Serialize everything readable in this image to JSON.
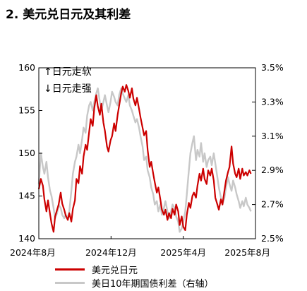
{
  "title": "2. 美元兑日元及其利差",
  "colors": {
    "usdjpy": "#cc0000",
    "spread": "#c8c8c8"
  },
  "annotations": {
    "up": "↑日元走软",
    "down": "↓日元走强"
  },
  "chart_data": {
    "type": "line",
    "title": "2. 美元兑日元及其利差",
    "x_range": [
      "2024-07-01",
      "2025-08-31"
    ],
    "x_ticks": [
      "2024年8月",
      "2024年12月",
      "2025年4月",
      "2025年8月"
    ],
    "y_left": {
      "range": [
        140,
        160
      ],
      "ticks": [
        "160",
        "155",
        "150",
        "145",
        "140"
      ]
    },
    "y_right": {
      "range": [
        2.5,
        3.5
      ],
      "ticks": [
        "3.5%",
        "3.3%",
        "3.1%",
        "2.9%",
        "2.7%",
        "2.5%"
      ]
    },
    "grid": false,
    "legend": "bottom",
    "series": [
      {
        "name": "美元兑日元",
        "axis": "left",
        "color": "#cc0000",
        "points": [
          [
            "2024-07-01",
            145.8
          ],
          [
            "2024-07-05",
            147.0
          ],
          [
            "2024-07-09",
            146.2
          ],
          [
            "2024-07-12",
            144.6
          ],
          [
            "2024-07-16",
            143.2
          ],
          [
            "2024-07-19",
            144.5
          ],
          [
            "2024-07-23",
            142.9
          ],
          [
            "2024-07-26",
            141.8
          ],
          [
            "2024-07-30",
            140.8
          ],
          [
            "2024-08-02",
            142.6
          ],
          [
            "2024-08-06",
            143.4
          ],
          [
            "2024-08-09",
            144.0
          ],
          [
            "2024-08-13",
            145.4
          ],
          [
            "2024-08-16",
            144.1
          ],
          [
            "2024-08-20",
            143.4
          ],
          [
            "2024-08-23",
            142.7
          ],
          [
            "2024-08-27",
            142.2
          ],
          [
            "2024-08-30",
            143.0
          ],
          [
            "2024-09-03",
            142.0
          ],
          [
            "2024-09-06",
            143.5
          ],
          [
            "2024-09-10",
            144.5
          ],
          [
            "2024-09-13",
            147.0
          ],
          [
            "2024-09-17",
            146.5
          ],
          [
            "2024-09-20",
            148.5
          ],
          [
            "2024-09-24",
            147.6
          ],
          [
            "2024-09-27",
            149.6
          ],
          [
            "2024-10-01",
            151.0
          ],
          [
            "2024-10-04",
            150.4
          ],
          [
            "2024-10-08",
            152.5
          ],
          [
            "2024-10-11",
            154.0
          ],
          [
            "2024-10-15",
            153.2
          ],
          [
            "2024-10-18",
            155.3
          ],
          [
            "2024-10-22",
            156.8
          ],
          [
            "2024-10-25",
            155.5
          ],
          [
            "2024-10-29",
            154.5
          ],
          [
            "2024-11-01",
            155.8
          ],
          [
            "2024-11-05",
            153.6
          ],
          [
            "2024-11-08",
            152.6
          ],
          [
            "2024-11-12",
            150.8
          ],
          [
            "2024-11-15",
            150.2
          ],
          [
            "2024-11-19",
            151.5
          ],
          [
            "2024-11-22",
            152.0
          ],
          [
            "2024-11-26",
            153.5
          ],
          [
            "2024-11-29",
            152.6
          ],
          [
            "2024-12-03",
            154.5
          ],
          [
            "2024-12-06",
            155.6
          ],
          [
            "2024-12-10",
            157.0
          ],
          [
            "2024-12-13",
            157.8
          ],
          [
            "2024-12-17",
            157.2
          ],
          [
            "2024-12-20",
            158.0
          ],
          [
            "2024-12-24",
            157.3
          ],
          [
            "2024-12-27",
            156.5
          ],
          [
            "2024-12-31",
            157.6
          ],
          [
            "2025-01-03",
            156.4
          ],
          [
            "2025-01-07",
            155.6
          ],
          [
            "2025-01-10",
            156.5
          ],
          [
            "2025-01-14",
            155.2
          ],
          [
            "2025-01-17",
            154.2
          ],
          [
            "2025-01-21",
            153.0
          ],
          [
            "2025-01-24",
            152.1
          ],
          [
            "2025-01-28",
            152.6
          ],
          [
            "2025-01-31",
            150.4
          ],
          [
            "2025-02-04",
            148.4
          ],
          [
            "2025-02-07",
            149.0
          ],
          [
            "2025-02-11",
            147.6
          ],
          [
            "2025-02-14",
            146.6
          ],
          [
            "2025-02-18",
            145.4
          ],
          [
            "2025-02-21",
            146.0
          ],
          [
            "2025-02-25",
            144.6
          ],
          [
            "2025-02-28",
            143.4
          ],
          [
            "2025-03-04",
            142.8
          ],
          [
            "2025-03-07",
            143.4
          ],
          [
            "2025-03-11",
            142.2
          ],
          [
            "2025-03-14",
            143.0
          ],
          [
            "2025-03-18",
            142.4
          ],
          [
            "2025-03-21",
            143.5
          ],
          [
            "2025-03-25",
            142.8
          ],
          [
            "2025-03-28",
            144.0
          ],
          [
            "2025-04-01",
            143.2
          ],
          [
            "2025-04-04",
            141.6
          ],
          [
            "2025-04-08",
            142.6
          ],
          [
            "2025-04-11",
            141.4
          ],
          [
            "2025-04-15",
            141.0
          ],
          [
            "2025-04-18",
            142.8
          ],
          [
            "2025-04-22",
            144.2
          ],
          [
            "2025-04-25",
            143.6
          ],
          [
            "2025-04-29",
            145.0
          ],
          [
            "2025-05-02",
            145.4
          ],
          [
            "2025-05-06",
            144.8
          ],
          [
            "2025-05-09",
            146.2
          ],
          [
            "2025-05-13",
            147.6
          ],
          [
            "2025-05-16",
            146.8
          ],
          [
            "2025-05-20",
            148.2
          ],
          [
            "2025-05-23",
            147.0
          ],
          [
            "2025-05-27",
            146.4
          ],
          [
            "2025-05-30",
            148.0
          ],
          [
            "2025-06-03",
            147.4
          ],
          [
            "2025-06-06",
            148.2
          ],
          [
            "2025-06-10",
            146.8
          ],
          [
            "2025-06-13",
            144.8
          ],
          [
            "2025-06-17",
            144.0
          ],
          [
            "2025-06-20",
            143.4
          ],
          [
            "2025-06-24",
            144.6
          ],
          [
            "2025-06-27",
            144.0
          ],
          [
            "2025-07-01",
            145.6
          ],
          [
            "2025-07-04",
            146.8
          ],
          [
            "2025-07-08",
            147.8
          ],
          [
            "2025-07-11",
            148.4
          ],
          [
            "2025-07-15",
            150.8
          ],
          [
            "2025-07-18",
            148.8
          ],
          [
            "2025-07-22",
            147.6
          ],
          [
            "2025-07-25",
            147.2
          ],
          [
            "2025-07-29",
            148.2
          ],
          [
            "2025-08-01",
            147.0
          ],
          [
            "2025-08-05",
            148.2
          ],
          [
            "2025-08-08",
            147.4
          ],
          [
            "2025-08-12",
            147.8
          ],
          [
            "2025-08-15",
            147.4
          ],
          [
            "2025-08-19",
            148.0
          ],
          [
            "2025-08-22",
            147.6
          ]
        ]
      },
      {
        "name": "美日10年期国债利差（右轴）",
        "axis": "right",
        "color": "#c8c8c8",
        "points": [
          [
            "2024-07-01",
            2.82
          ],
          [
            "2024-07-05",
            3.0
          ],
          [
            "2024-07-09",
            2.92
          ],
          [
            "2024-07-12",
            2.88
          ],
          [
            "2024-07-16",
            2.95
          ],
          [
            "2024-07-19",
            2.86
          ],
          [
            "2024-07-23",
            2.78
          ],
          [
            "2024-07-26",
            2.75
          ],
          [
            "2024-07-30",
            2.68
          ],
          [
            "2024-08-02",
            2.62
          ],
          [
            "2024-08-06",
            2.65
          ],
          [
            "2024-08-09",
            2.7
          ],
          [
            "2024-08-13",
            2.68
          ],
          [
            "2024-08-16",
            2.64
          ],
          [
            "2024-08-20",
            2.62
          ],
          [
            "2024-08-23",
            2.64
          ],
          [
            "2024-08-27",
            2.62
          ],
          [
            "2024-08-30",
            2.66
          ],
          [
            "2024-09-03",
            2.78
          ],
          [
            "2024-09-06",
            2.88
          ],
          [
            "2024-09-10",
            2.95
          ],
          [
            "2024-09-13",
            2.98
          ],
          [
            "2024-09-17",
            3.05
          ],
          [
            "2024-09-20",
            3.0
          ],
          [
            "2024-09-24",
            3.08
          ],
          [
            "2024-09-27",
            3.15
          ],
          [
            "2024-10-01",
            3.12
          ],
          [
            "2024-10-04",
            3.22
          ],
          [
            "2024-10-08",
            3.28
          ],
          [
            "2024-10-11",
            3.3
          ],
          [
            "2024-10-15",
            3.25
          ],
          [
            "2024-10-18",
            3.3
          ],
          [
            "2024-10-22",
            3.35
          ],
          [
            "2024-10-25",
            3.38
          ],
          [
            "2024-10-29",
            3.3
          ],
          [
            "2024-11-01",
            3.25
          ],
          [
            "2024-11-05",
            3.3
          ],
          [
            "2024-11-08",
            3.34
          ],
          [
            "2024-11-12",
            3.28
          ],
          [
            "2024-11-15",
            3.24
          ],
          [
            "2024-11-19",
            3.3
          ],
          [
            "2024-11-22",
            3.36
          ],
          [
            "2024-11-26",
            3.33
          ],
          [
            "2024-11-29",
            3.3
          ],
          [
            "2024-12-03",
            3.28
          ],
          [
            "2024-12-06",
            3.34
          ],
          [
            "2024-12-10",
            3.38
          ],
          [
            "2024-12-13",
            3.35
          ],
          [
            "2024-12-17",
            3.32
          ],
          [
            "2024-12-20",
            3.3
          ],
          [
            "2024-12-24",
            3.34
          ],
          [
            "2024-12-27",
            3.28
          ],
          [
            "2024-12-31",
            3.25
          ],
          [
            "2025-01-03",
            3.22
          ],
          [
            "2025-01-07",
            3.18
          ],
          [
            "2025-01-10",
            3.2
          ],
          [
            "2025-01-14",
            3.15
          ],
          [
            "2025-01-17",
            3.1
          ],
          [
            "2025-01-21",
            3.04
          ],
          [
            "2025-01-24",
            2.96
          ],
          [
            "2025-01-28",
            2.98
          ],
          [
            "2025-01-31",
            2.9
          ],
          [
            "2025-02-04",
            2.86
          ],
          [
            "2025-02-07",
            2.8
          ],
          [
            "2025-02-11",
            2.76
          ],
          [
            "2025-02-14",
            2.7
          ],
          [
            "2025-02-18",
            2.72
          ],
          [
            "2025-02-21",
            2.66
          ],
          [
            "2025-02-25",
            2.7
          ],
          [
            "2025-02-28",
            2.64
          ],
          [
            "2025-03-04",
            2.68
          ],
          [
            "2025-03-07",
            2.72
          ],
          [
            "2025-03-11",
            2.66
          ],
          [
            "2025-03-14",
            2.62
          ],
          [
            "2025-03-18",
            2.66
          ],
          [
            "2025-03-21",
            2.7
          ],
          [
            "2025-03-25",
            2.68
          ],
          [
            "2025-03-28",
            2.63
          ],
          [
            "2025-04-01",
            2.6
          ],
          [
            "2025-04-04",
            2.54
          ],
          [
            "2025-04-08",
            2.56
          ],
          [
            "2025-04-11",
            2.6
          ],
          [
            "2025-04-15",
            2.66
          ],
          [
            "2025-04-18",
            2.76
          ],
          [
            "2025-04-22",
            2.9
          ],
          [
            "2025-04-25",
            3.0
          ],
          [
            "2025-04-29",
            3.06
          ],
          [
            "2025-05-02",
            3.1
          ],
          [
            "2025-05-06",
            2.96
          ],
          [
            "2025-05-09",
            3.02
          ],
          [
            "2025-05-13",
            2.98
          ],
          [
            "2025-05-16",
            3.06
          ],
          [
            "2025-05-20",
            2.95
          ],
          [
            "2025-05-23",
            3.0
          ],
          [
            "2025-05-27",
            2.92
          ],
          [
            "2025-05-30",
            2.96
          ],
          [
            "2025-06-03",
            2.98
          ],
          [
            "2025-06-06",
            2.93
          ],
          [
            "2025-06-10",
            3.0
          ],
          [
            "2025-06-13",
            2.94
          ],
          [
            "2025-06-17",
            2.86
          ],
          [
            "2025-06-20",
            2.8
          ],
          [
            "2025-06-24",
            2.74
          ],
          [
            "2025-06-27",
            2.7
          ],
          [
            "2025-07-01",
            2.74
          ],
          [
            "2025-07-04",
            2.8
          ],
          [
            "2025-07-08",
            2.86
          ],
          [
            "2025-07-11",
            2.82
          ],
          [
            "2025-07-15",
            2.78
          ],
          [
            "2025-07-18",
            2.84
          ],
          [
            "2025-07-22",
            2.8
          ],
          [
            "2025-07-25",
            2.76
          ],
          [
            "2025-07-29",
            2.72
          ],
          [
            "2025-08-01",
            2.68
          ],
          [
            "2025-08-05",
            2.72
          ],
          [
            "2025-08-08",
            2.69
          ],
          [
            "2025-08-12",
            2.74
          ],
          [
            "2025-08-15",
            2.7
          ],
          [
            "2025-08-19",
            2.68
          ],
          [
            "2025-08-22",
            2.66
          ]
        ]
      }
    ]
  }
}
